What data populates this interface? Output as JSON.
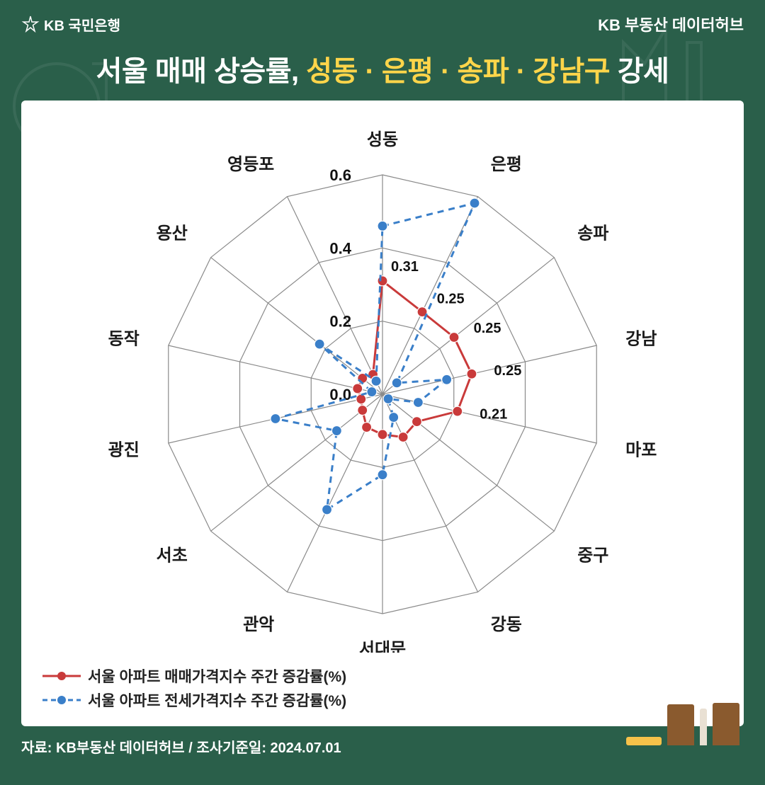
{
  "header": {
    "bank_logo_prefix": "Kb",
    "bank_name": "KB 국민은행",
    "hub_name": "KB 부동산 데이터허브"
  },
  "title": {
    "prefix": "서울 매매 상승률,",
    "highlight": "성동 · 은평 · 송파 · 강남구",
    "suffix": "강세"
  },
  "chart": {
    "type": "radar",
    "categories": [
      "성동",
      "은평",
      "송파",
      "강남",
      "마포",
      "중구",
      "강동",
      "서대문",
      "관악",
      "서초",
      "광진",
      "동작",
      "용산",
      "영등포"
    ],
    "rings": [
      0.0,
      0.2,
      0.4,
      0.6
    ],
    "ring_labels": [
      "0.0",
      "0.2",
      "0.4",
      "0.6"
    ],
    "series": [
      {
        "name": "매매",
        "label": "서울 아파트 매매가격지수 주간 증감률(%)",
        "color": "#c93a3a",
        "line_style": "solid",
        "line_width": 3,
        "marker": "circle",
        "marker_size": 7,
        "values": [
          0.31,
          0.25,
          0.25,
          0.25,
          0.21,
          0.12,
          0.13,
          0.11,
          0.1,
          0.07,
          0.06,
          0.07,
          0.07,
          0.06
        ]
      },
      {
        "name": "전세",
        "label": "서울 아파트 전세가격지수 주간 증감률(%)",
        "color": "#3a7fc9",
        "line_style": "dashed",
        "line_width": 3,
        "marker": "circle",
        "marker_size": 7,
        "values": [
          0.46,
          0.58,
          0.05,
          0.18,
          0.1,
          0.02,
          0.07,
          0.22,
          0.35,
          0.16,
          0.3,
          0.03,
          0.22,
          0.04
        ]
      }
    ],
    "value_annotations": [
      {
        "category_index": 0,
        "value": 0.31,
        "text": "0.31"
      },
      {
        "category_index": 1,
        "value": 0.25,
        "text": "0.25"
      },
      {
        "category_index": 2,
        "value": 0.25,
        "text": "0.25"
      },
      {
        "category_index": 3,
        "value": 0.25,
        "text": "0.25"
      },
      {
        "category_index": 4,
        "value": 0.21,
        "text": "0.21"
      }
    ],
    "grid_color": "#8a8a8a",
    "grid_width": 1.2,
    "background_color": "#ffffff",
    "label_fontsize": 24,
    "label_color": "#1a1a1a",
    "ring_label_fontsize": 22,
    "annotation_fontsize": 20,
    "max_radius": 0.6
  },
  "source": {
    "text": "자료: KB부동산 데이터허브 / 조사기준일: 2024.07.01"
  },
  "colors": {
    "page_bg": "#2a5f4a",
    "card_bg": "#ffffff",
    "title_white": "#ffffff",
    "title_highlight": "#ffd54a"
  }
}
